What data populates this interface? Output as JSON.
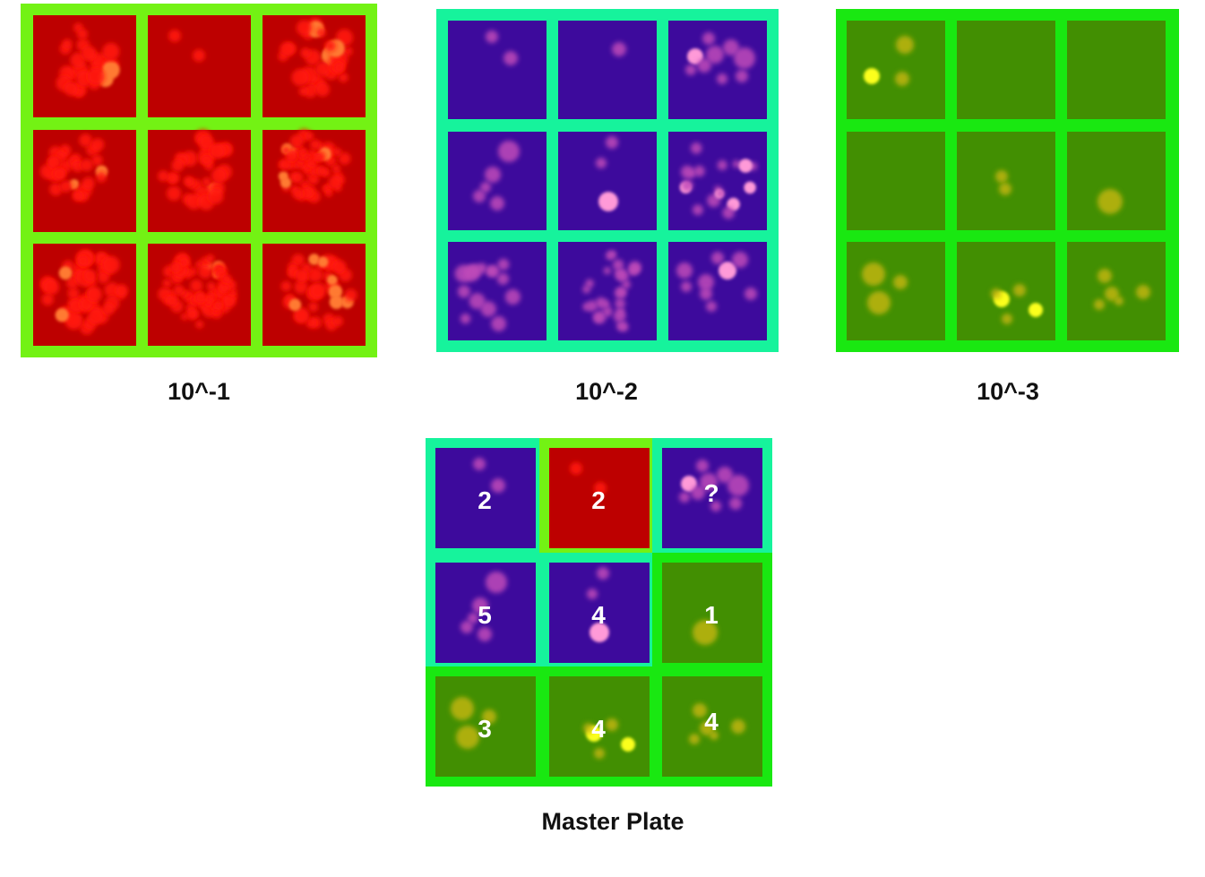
{
  "colors": {
    "red_plate_bg": "#bd0000",
    "red_plate_frame": "#73f214",
    "red_colony": "#ff1a0a",
    "purple_plate_bg": "#3d0a9c",
    "purple_plate_frame": "#16f39c",
    "purple_colony": "#c04ab9",
    "green_plate_bg": "#428f02",
    "green_plate_frame": "#19e811",
    "green_colony": "#c8b813",
    "bright_yellow": "#fbff1f"
  },
  "panels": [
    {
      "id": "red",
      "label": "10^-1"
    },
    {
      "id": "purple",
      "label": "10^-2"
    },
    {
      "id": "green",
      "label": "10^-3"
    }
  ],
  "master": {
    "label": "Master Plate",
    "cells": [
      {
        "source": "purple",
        "count": "2"
      },
      {
        "source": "red",
        "count": "2"
      },
      {
        "source": "purple",
        "count": "?"
      },
      {
        "source": "purple",
        "count": "5"
      },
      {
        "source": "purple",
        "count": "4"
      },
      {
        "source": "green",
        "count": "1"
      },
      {
        "source": "green",
        "count": "3"
      },
      {
        "source": "green",
        "count": "4"
      },
      {
        "source": "green",
        "count": "4"
      }
    ]
  }
}
